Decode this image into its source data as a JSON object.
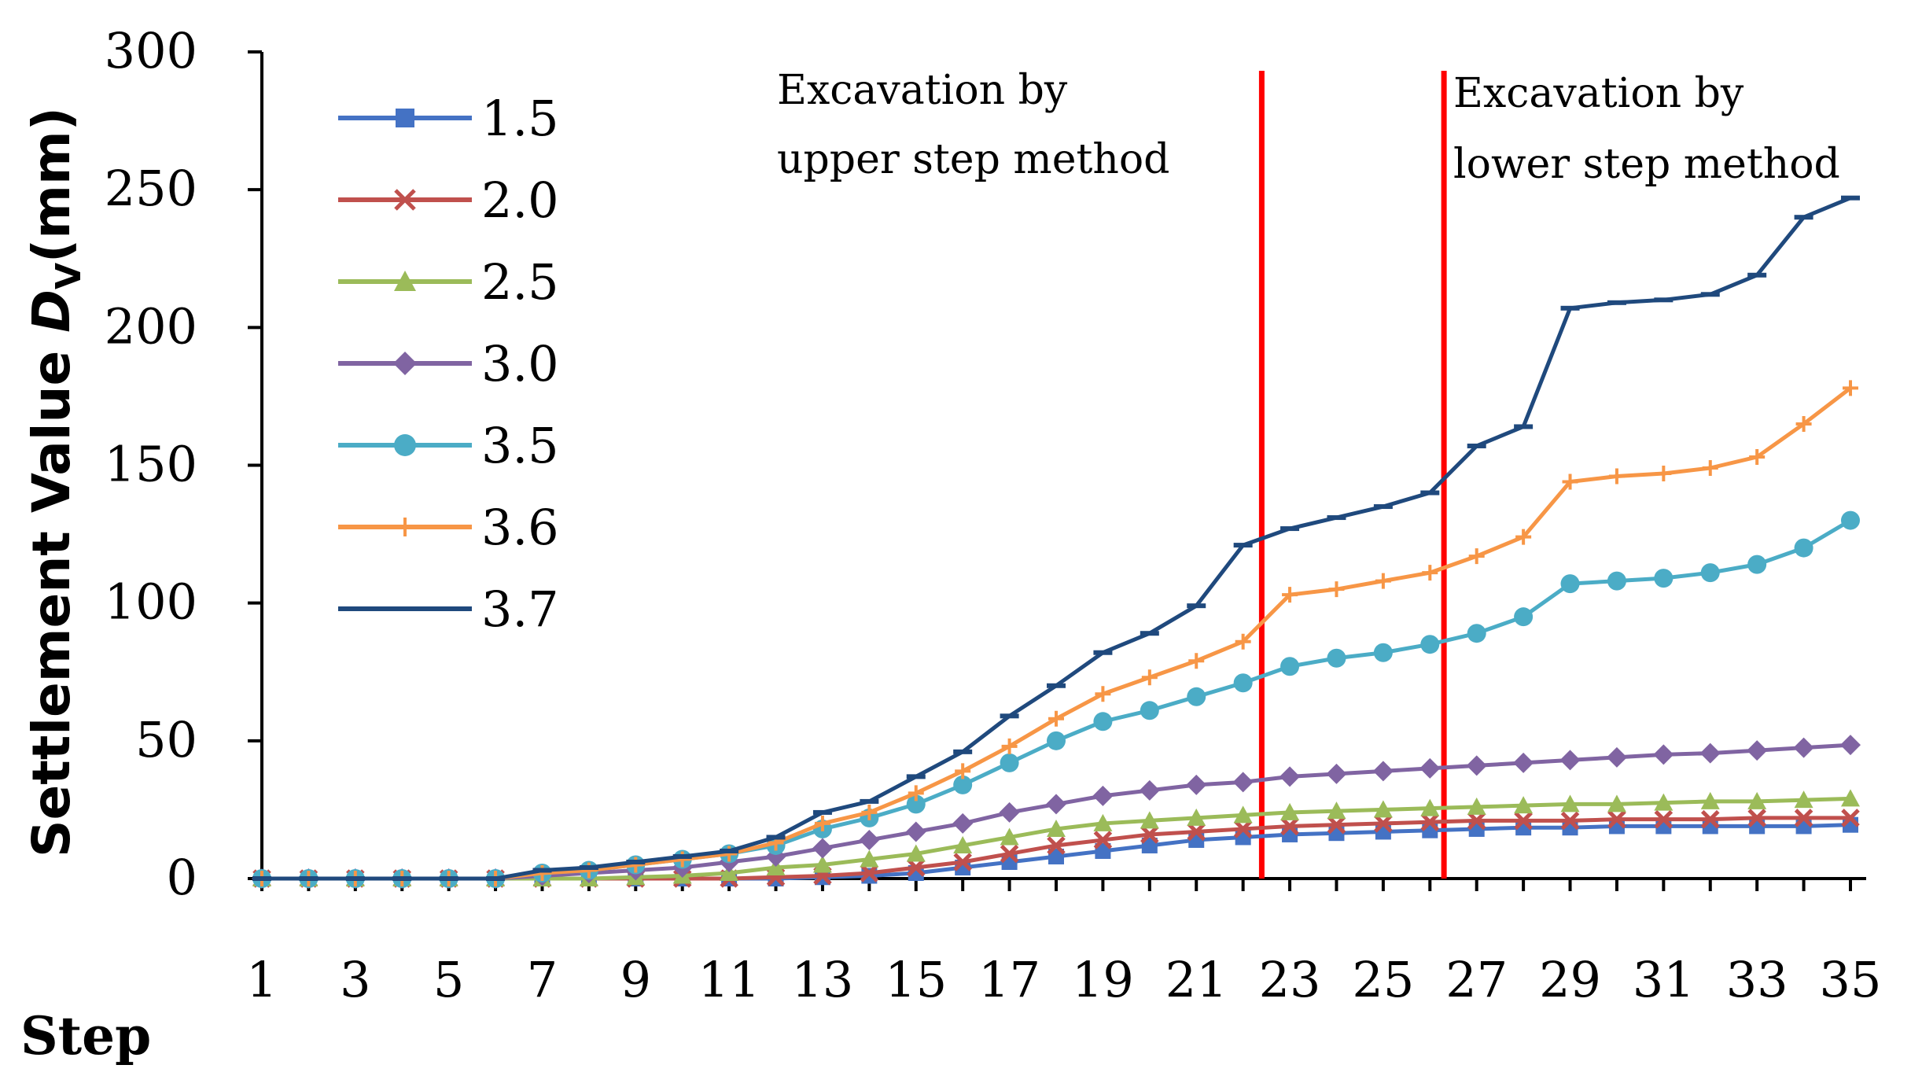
{
  "chart_data": {
    "type": "line",
    "title": "",
    "xlabel": "Step",
    "ylabel": "Settlement Value ",
    "ylabel_symbol": "D",
    "ylabel_subscript": "V",
    "ylabel_unit": "(mm)",
    "x": [
      1,
      2,
      3,
      4,
      5,
      6,
      7,
      8,
      9,
      10,
      11,
      12,
      13,
      14,
      15,
      16,
      17,
      18,
      19,
      20,
      21,
      22,
      23,
      24,
      25,
      26,
      27,
      28,
      29,
      30,
      31,
      32,
      33,
      34,
      35
    ],
    "x_ticks": [
      "1",
      "3",
      "5",
      "7",
      "9",
      "11",
      "13",
      "15",
      "17",
      "19",
      "21",
      "23",
      "25",
      "27",
      "29",
      "31",
      "33",
      "35"
    ],
    "y_ticks": [
      "0",
      "50",
      "100",
      "150",
      "200",
      "250",
      "300"
    ],
    "xlim": [
      1,
      35
    ],
    "ylim": [
      0,
      300
    ],
    "legend_position": "top-left",
    "series": [
      {
        "name": "1.5",
        "color": "#4472C4",
        "marker": "square",
        "values": [
          0,
          0,
          0,
          0,
          0,
          0,
          0,
          0,
          0,
          0,
          0,
          0,
          0.5,
          1,
          2,
          4,
          6,
          8,
          10,
          12,
          14,
          15,
          16,
          16.5,
          17,
          17.5,
          18,
          18.5,
          18.5,
          19,
          19,
          19,
          19,
          19,
          19.5
        ]
      },
      {
        "name": "2.0",
        "color": "#C0504D",
        "marker": "x",
        "values": [
          0,
          0,
          0,
          0,
          0,
          0,
          0,
          0,
          0,
          0,
          0,
          0.5,
          1,
          2,
          4,
          6,
          9,
          12,
          14,
          16,
          17,
          18,
          19,
          19.5,
          20,
          20.5,
          21,
          21,
          21,
          21.5,
          21.5,
          21.5,
          22,
          22,
          22
        ]
      },
      {
        "name": "2.5",
        "color": "#9BBB59",
        "marker": "triangle",
        "values": [
          0,
          0,
          0,
          0,
          0,
          0,
          0,
          0,
          0.5,
          1,
          2,
          4,
          5,
          7,
          9,
          12,
          15,
          18,
          20,
          21,
          22,
          23,
          24,
          24.5,
          25,
          25.5,
          26,
          26.5,
          27,
          27,
          27.5,
          28,
          28,
          28.5,
          29
        ]
      },
      {
        "name": "3.0",
        "color": "#8064A2",
        "marker": "diamond",
        "values": [
          0,
          0,
          0,
          0,
          0,
          0,
          1,
          2,
          3,
          4,
          6,
          8,
          11,
          14,
          17,
          20,
          24,
          27,
          30,
          32,
          34,
          35,
          37,
          38,
          39,
          40,
          41,
          42,
          43,
          44,
          45,
          45.5,
          46.5,
          47.5,
          48.5
        ]
      },
      {
        "name": "3.5",
        "color": "#4BACC6",
        "marker": "circle",
        "values": [
          0,
          0,
          0,
          0,
          0,
          0,
          2,
          3,
          5,
          7,
          9,
          12,
          18,
          22,
          27,
          34,
          42,
          50,
          57,
          61,
          66,
          71,
          77,
          80,
          82,
          85,
          89,
          95,
          107,
          108,
          109,
          111,
          114,
          120,
          130
        ]
      },
      {
        "name": "3.6",
        "color": "#F79646",
        "marker": "plus",
        "values": [
          0,
          0,
          0,
          0,
          0,
          0,
          2,
          3,
          5,
          7,
          9,
          13,
          20,
          24,
          31,
          39,
          48,
          58,
          67,
          73,
          79,
          86,
          103,
          105,
          108,
          111,
          117,
          124,
          144,
          146,
          147,
          149,
          153,
          165,
          178
        ]
      },
      {
        "name": "3.7",
        "color": "#1F497D",
        "marker": "dash",
        "values": [
          0,
          0,
          0,
          0,
          0,
          0,
          3,
          4,
          6,
          8,
          10,
          15,
          24,
          28,
          37,
          46,
          59,
          70,
          82,
          89,
          99,
          121,
          127,
          131,
          135,
          140,
          157,
          164,
          207,
          209,
          210,
          212,
          219,
          240,
          247
        ]
      }
    ],
    "vertical_lines": [
      {
        "x": 22.4,
        "color": "#FF0000"
      },
      {
        "x": 26.3,
        "color": "#FF0000"
      }
    ],
    "annotations": [
      {
        "line1": "Excavation by",
        "line2": "upper step method"
      },
      {
        "line1": "Excavation by",
        "line2": "lower step method"
      }
    ]
  }
}
